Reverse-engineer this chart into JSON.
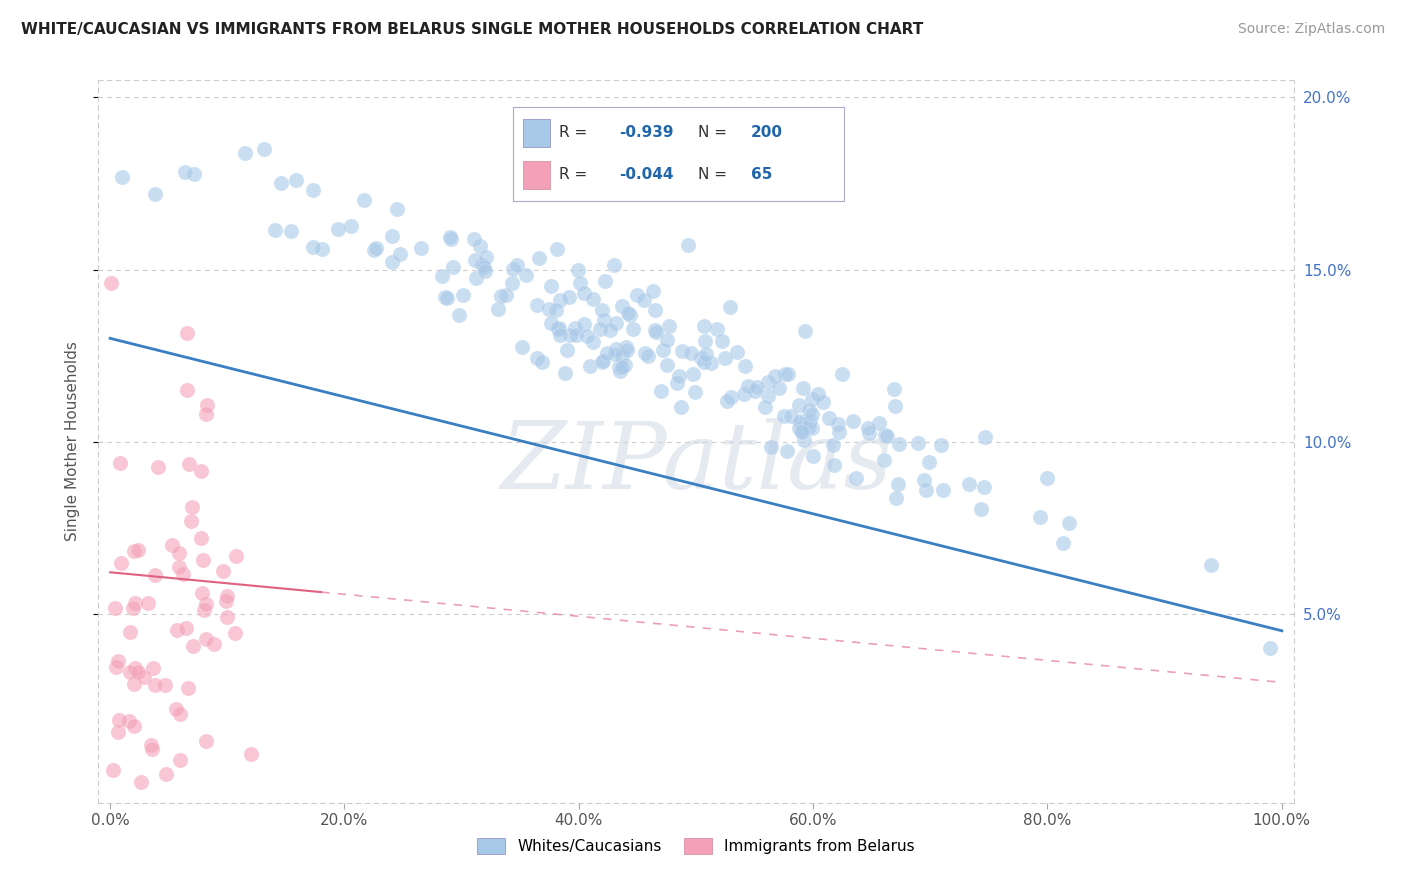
{
  "title": "WHITE/CAUCASIAN VS IMMIGRANTS FROM BELARUS SINGLE MOTHER HOUSEHOLDS CORRELATION CHART",
  "source": "Source: ZipAtlas.com",
  "ylabel": "Single Mother Households",
  "legend_bottom": [
    "Whites/Caucasians",
    "Immigrants from Belarus"
  ],
  "blue_R": -0.939,
  "blue_N": 200,
  "pink_R": -0.044,
  "pink_N": 65,
  "blue_color": "#a8c8e8",
  "pink_color": "#f4a0b8",
  "blue_line_color": "#3a7fc1",
  "pink_line_color": "#e06080",
  "watermark": "ZIPatlas",
  "xlim": [
    0.0,
    1.0
  ],
  "ylim": [
    0.0,
    0.205
  ],
  "yticks": [
    0.05,
    0.1,
    0.15,
    0.2
  ],
  "xticks": [
    0.0,
    0.2,
    0.4,
    0.6,
    0.8,
    1.0
  ]
}
